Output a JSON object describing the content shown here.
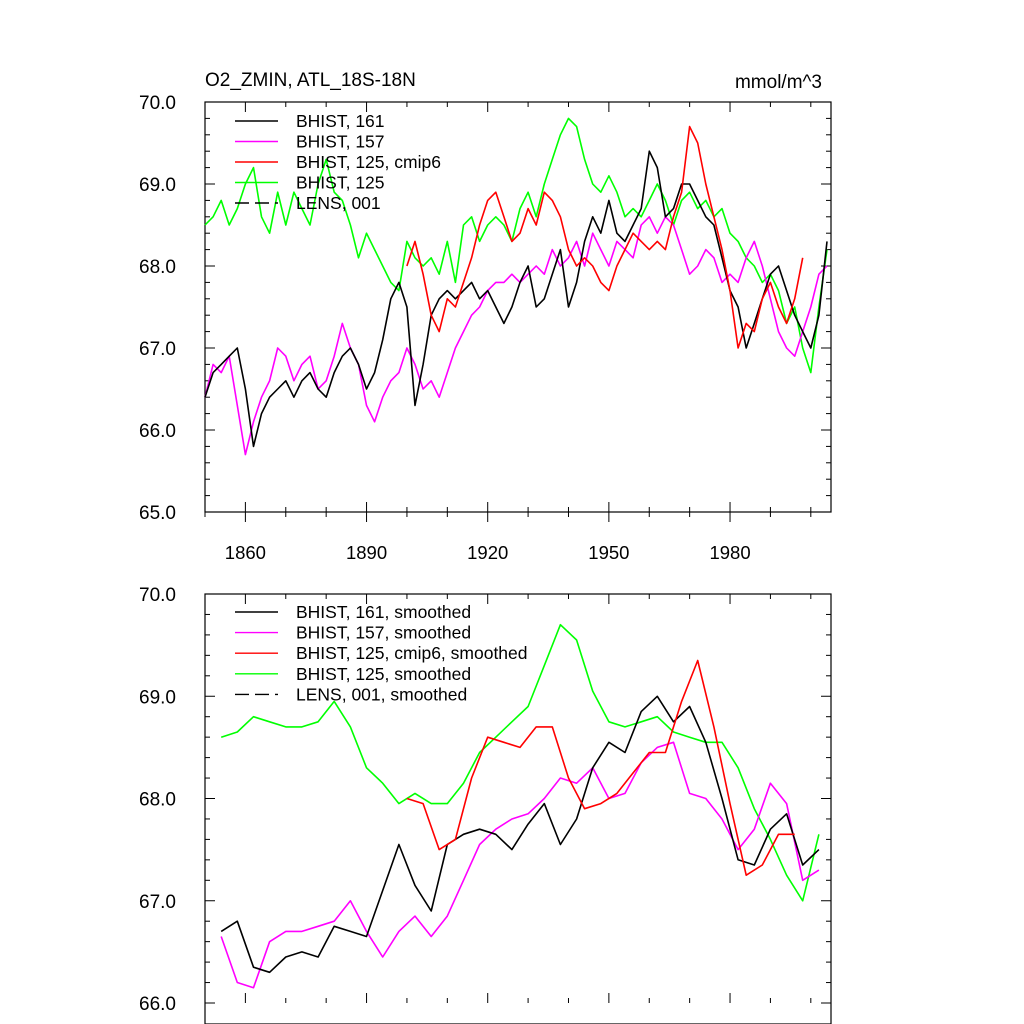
{
  "chart_data": [
    {
      "type": "line",
      "title": "O2_ZMIN, ATL_18S-18N",
      "units": "mmol/m^3",
      "xlim": [
        1850,
        2005
      ],
      "ylim": [
        65.0,
        70.0
      ],
      "yticks": [
        "70.0",
        "69.0",
        "68.0",
        "67.0",
        "66.0",
        "65.0"
      ],
      "ytick_values": [
        70,
        69,
        68,
        67,
        66,
        65
      ],
      "xticks": [
        "1860",
        "1890",
        "1920",
        "1950",
        "1980"
      ],
      "xtick_values": [
        1860,
        1890,
        1920,
        1950,
        1980
      ],
      "legend": [
        {
          "label": "BHIST, 161",
          "color": "#000000",
          "dash": false
        },
        {
          "label": "BHIST, 157",
          "color": "#ff00ff",
          "dash": false
        },
        {
          "label": "BHIST, 125, cmip6",
          "color": "#ff0000",
          "dash": false
        },
        {
          "label": "BHIST, 125",
          "color": "#00ff00",
          "dash": false
        },
        {
          "label": "LENS, 001",
          "color": "#000000",
          "dash": true
        }
      ],
      "series": [
        {
          "name": "BHIST, 125",
          "color": "#00ff00",
          "x": [
            1850,
            1852,
            1854,
            1856,
            1858,
            1860,
            1862,
            1864,
            1866,
            1868,
            1870,
            1872,
            1874,
            1876,
            1878,
            1880,
            1882,
            1884,
            1886,
            1888,
            1890,
            1892,
            1894,
            1896,
            1898,
            1900,
            1902,
            1904,
            1906,
            1908,
            1910,
            1912,
            1914,
            1916,
            1918,
            1920,
            1922,
            1924,
            1926,
            1928,
            1930,
            1932,
            1934,
            1936,
            1938,
            1940,
            1942,
            1944,
            1946,
            1948,
            1950,
            1952,
            1954,
            1956,
            1958,
            1960,
            1962,
            1964,
            1966,
            1968,
            1970,
            1972,
            1974,
            1976,
            1978,
            1980,
            1982,
            1984,
            1986,
            1988,
            1990,
            1992,
            1994,
            1996,
            1998,
            2000,
            2002,
            2004
          ],
          "values": [
            68.5,
            68.6,
            68.8,
            68.5,
            68.7,
            69.0,
            69.2,
            68.6,
            68.4,
            68.9,
            68.5,
            68.9,
            68.7,
            68.5,
            69.0,
            69.3,
            68.9,
            68.8,
            68.5,
            68.1,
            68.4,
            68.2,
            68.0,
            67.8,
            67.7,
            68.3,
            68.1,
            68.0,
            68.1,
            67.9,
            68.3,
            67.8,
            68.5,
            68.6,
            68.3,
            68.5,
            68.6,
            68.5,
            68.3,
            68.7,
            68.9,
            68.6,
            69.0,
            69.3,
            69.6,
            69.8,
            69.7,
            69.3,
            69.0,
            68.9,
            69.1,
            68.9,
            68.6,
            68.7,
            68.6,
            68.8,
            69.0,
            68.8,
            68.5,
            68.8,
            68.9,
            68.7,
            68.8,
            68.6,
            68.7,
            68.4,
            68.3,
            68.1,
            68.0,
            67.8,
            67.9,
            67.7,
            67.3,
            67.5,
            67.0,
            66.7,
            67.5,
            68.2
          ]
        },
        {
          "name": "BHIST, 157",
          "color": "#ff00ff",
          "x": [
            1850,
            1852,
            1854,
            1856,
            1858,
            1860,
            1862,
            1864,
            1866,
            1868,
            1870,
            1872,
            1874,
            1876,
            1878,
            1880,
            1882,
            1884,
            1886,
            1888,
            1890,
            1892,
            1894,
            1896,
            1898,
            1900,
            1902,
            1904,
            1906,
            1908,
            1910,
            1912,
            1914,
            1916,
            1918,
            1920,
            1922,
            1924,
            1926,
            1928,
            1930,
            1932,
            1934,
            1936,
            1938,
            1940,
            1942,
            1944,
            1946,
            1948,
            1950,
            1952,
            1954,
            1956,
            1958,
            1960,
            1962,
            1964,
            1966,
            1968,
            1970,
            1972,
            1974,
            1976,
            1978,
            1980,
            1982,
            1984,
            1986,
            1988,
            1990,
            1992,
            1994,
            1996,
            1998,
            2000,
            2002,
            2004
          ],
          "values": [
            66.4,
            66.8,
            66.7,
            66.9,
            66.3,
            65.7,
            66.1,
            66.4,
            66.6,
            67.0,
            66.9,
            66.6,
            66.8,
            66.9,
            66.5,
            66.6,
            66.9,
            67.3,
            67.0,
            66.8,
            66.3,
            66.1,
            66.4,
            66.6,
            66.7,
            67.0,
            66.8,
            66.5,
            66.6,
            66.4,
            66.7,
            67.0,
            67.2,
            67.4,
            67.5,
            67.7,
            67.8,
            67.8,
            67.9,
            67.8,
            67.9,
            68.0,
            67.9,
            68.2,
            68.0,
            68.1,
            68.3,
            68.0,
            68.4,
            68.2,
            68.0,
            68.3,
            68.2,
            68.1,
            68.5,
            68.6,
            68.4,
            68.6,
            68.5,
            68.2,
            67.9,
            68.0,
            68.2,
            68.1,
            67.8,
            67.9,
            67.8,
            68.1,
            68.3,
            68.0,
            67.6,
            67.2,
            67.0,
            66.9,
            67.2,
            67.5,
            67.9,
            68.0
          ]
        },
        {
          "name": "BHIST, 161",
          "color": "#000000",
          "x": [
            1850,
            1852,
            1854,
            1856,
            1858,
            1860,
            1862,
            1864,
            1866,
            1868,
            1870,
            1872,
            1874,
            1876,
            1878,
            1880,
            1882,
            1884,
            1886,
            1888,
            1890,
            1892,
            1894,
            1896,
            1898,
            1900,
            1902,
            1904,
            1906,
            1908,
            1910,
            1912,
            1914,
            1916,
            1918,
            1920,
            1922,
            1924,
            1926,
            1928,
            1930,
            1932,
            1934,
            1936,
            1938,
            1940,
            1942,
            1944,
            1946,
            1948,
            1950,
            1952,
            1954,
            1956,
            1958,
            1960,
            1962,
            1964,
            1966,
            1968,
            1970,
            1972,
            1974,
            1976,
            1978,
            1980,
            1982,
            1984,
            1986,
            1988,
            1990,
            1992,
            1994,
            1996,
            1998,
            2000,
            2002,
            2004
          ],
          "values": [
            66.4,
            66.7,
            66.8,
            66.9,
            67.0,
            66.5,
            65.8,
            66.2,
            66.4,
            66.5,
            66.6,
            66.4,
            66.6,
            66.7,
            66.5,
            66.4,
            66.7,
            66.9,
            67.0,
            66.8,
            66.5,
            66.7,
            67.1,
            67.6,
            67.8,
            67.5,
            66.3,
            66.8,
            67.4,
            67.6,
            67.7,
            67.6,
            67.7,
            67.8,
            67.6,
            67.7,
            67.5,
            67.3,
            67.5,
            67.8,
            68.0,
            67.5,
            67.6,
            67.9,
            68.2,
            67.5,
            67.8,
            68.3,
            68.6,
            68.4,
            68.8,
            68.4,
            68.3,
            68.5,
            68.7,
            69.4,
            69.2,
            68.6,
            68.7,
            69.0,
            69.0,
            68.8,
            68.6,
            68.5,
            68.1,
            67.7,
            67.5,
            67.0,
            67.3,
            67.6,
            67.9,
            68.0,
            67.7,
            67.4,
            67.2,
            67.0,
            67.4,
            68.3
          ]
        },
        {
          "name": "BHIST, 125, cmip6",
          "color": "#ff0000",
          "x": [
            1900,
            1902,
            1904,
            1906,
            1908,
            1910,
            1912,
            1914,
            1916,
            1918,
            1920,
            1922,
            1924,
            1926,
            1928,
            1930,
            1932,
            1934,
            1936,
            1938,
            1940,
            1942,
            1944,
            1946,
            1948,
            1950,
            1952,
            1954,
            1956,
            1958,
            1960,
            1962,
            1964,
            1966,
            1968,
            1970,
            1972,
            1974,
            1976,
            1978,
            1980,
            1982,
            1984,
            1986,
            1988,
            1990,
            1992,
            1994,
            1996,
            1998
          ],
          "values": [
            68.0,
            68.3,
            67.9,
            67.4,
            67.2,
            67.6,
            67.5,
            67.8,
            68.1,
            68.5,
            68.8,
            68.9,
            68.6,
            68.3,
            68.4,
            68.7,
            68.5,
            68.9,
            68.8,
            68.6,
            68.2,
            68.0,
            68.1,
            68.0,
            67.8,
            67.7,
            68.0,
            68.2,
            68.4,
            68.3,
            68.2,
            68.3,
            68.2,
            68.6,
            68.9,
            69.7,
            69.5,
            69.0,
            68.6,
            68.2,
            67.7,
            67.0,
            67.3,
            67.2,
            67.6,
            67.8,
            67.5,
            67.3,
            67.6,
            68.1
          ]
        }
      ]
    },
    {
      "type": "line",
      "title": "",
      "xlim": [
        1850,
        2005
      ],
      "ylim": [
        66.0,
        70.0
      ],
      "yticks": [
        "70.0",
        "69.0",
        "68.0",
        "67.0",
        "66.0"
      ],
      "ytick_values": [
        70,
        69,
        68,
        67,
        66
      ],
      "legend": [
        {
          "label": "BHIST, 161, smoothed",
          "color": "#000000",
          "dash": false
        },
        {
          "label": "BHIST, 157, smoothed",
          "color": "#ff00ff",
          "dash": false
        },
        {
          "label": "BHIST, 125, cmip6, smoothed",
          "color": "#ff0000",
          "dash": false
        },
        {
          "label": "BHIST, 125, smoothed",
          "color": "#00ff00",
          "dash": false
        },
        {
          "label": "LENS, 001, smoothed",
          "color": "#000000",
          "dash": true
        }
      ],
      "series": [
        {
          "name": "BHIST, 125, smoothed",
          "color": "#00ff00",
          "x": [
            1854,
            1858,
            1862,
            1866,
            1870,
            1874,
            1878,
            1882,
            1886,
            1890,
            1894,
            1898,
            1902,
            1906,
            1910,
            1914,
            1918,
            1922,
            1926,
            1930,
            1934,
            1938,
            1942,
            1946,
            1950,
            1954,
            1958,
            1962,
            1966,
            1970,
            1974,
            1978,
            1982,
            1986,
            1990,
            1994,
            1998,
            2002
          ],
          "values": [
            68.6,
            68.65,
            68.8,
            68.75,
            68.7,
            68.7,
            68.75,
            68.95,
            68.7,
            68.3,
            68.15,
            67.95,
            68.05,
            67.95,
            67.95,
            68.15,
            68.45,
            68.6,
            68.75,
            68.9,
            69.3,
            69.7,
            69.55,
            69.05,
            68.75,
            68.7,
            68.75,
            68.8,
            68.65,
            68.6,
            68.55,
            68.55,
            68.3,
            67.9,
            67.6,
            67.25,
            67.0,
            67.65
          ]
        },
        {
          "name": "BHIST, 157, smoothed",
          "color": "#ff00ff",
          "x": [
            1854,
            1858,
            1862,
            1866,
            1870,
            1874,
            1878,
            1882,
            1886,
            1890,
            1894,
            1898,
            1902,
            1906,
            1910,
            1914,
            1918,
            1922,
            1926,
            1930,
            1934,
            1938,
            1942,
            1946,
            1950,
            1954,
            1958,
            1962,
            1966,
            1970,
            1974,
            1978,
            1982,
            1986,
            1990,
            1994,
            1998,
            2002
          ],
          "values": [
            66.65,
            66.2,
            66.15,
            66.6,
            66.7,
            66.7,
            66.75,
            66.8,
            67.0,
            66.7,
            66.45,
            66.7,
            66.85,
            66.65,
            66.85,
            67.2,
            67.55,
            67.7,
            67.8,
            67.85,
            68.0,
            68.2,
            68.15,
            68.3,
            68.0,
            68.05,
            68.35,
            68.5,
            68.55,
            68.05,
            68.0,
            67.8,
            67.5,
            67.7,
            68.15,
            67.95,
            67.2,
            67.3
          ]
        },
        {
          "name": "BHIST, 161, smoothed",
          "color": "#000000",
          "x": [
            1854,
            1858,
            1862,
            1866,
            1870,
            1874,
            1878,
            1882,
            1886,
            1890,
            1894,
            1898,
            1902,
            1906,
            1910,
            1914,
            1918,
            1922,
            1926,
            1930,
            1934,
            1938,
            1942,
            1946,
            1950,
            1954,
            1958,
            1962,
            1966,
            1970,
            1974,
            1978,
            1982,
            1986,
            1990,
            1994,
            1998,
            2002
          ],
          "values": [
            66.7,
            66.8,
            66.35,
            66.3,
            66.45,
            66.5,
            66.45,
            66.75,
            66.7,
            66.65,
            67.1,
            67.55,
            67.15,
            66.9,
            67.55,
            67.65,
            67.7,
            67.65,
            67.5,
            67.75,
            67.95,
            67.55,
            67.8,
            68.3,
            68.55,
            68.45,
            68.85,
            69.0,
            68.75,
            68.9,
            68.55,
            68.0,
            67.4,
            67.35,
            67.7,
            67.85,
            67.35,
            67.5
          ]
        },
        {
          "name": "BHIST, 125, cmip6, smoothed",
          "color": "#ff0000",
          "x": [
            1900,
            1904,
            1908,
            1912,
            1916,
            1920,
            1924,
            1928,
            1932,
            1936,
            1940,
            1944,
            1948,
            1952,
            1956,
            1960,
            1964,
            1968,
            1972,
            1976,
            1980,
            1984,
            1988,
            1992,
            1996
          ],
          "values": [
            68.0,
            67.95,
            67.5,
            67.6,
            68.2,
            68.6,
            68.55,
            68.5,
            68.7,
            68.7,
            68.2,
            67.9,
            67.95,
            68.05,
            68.25,
            68.45,
            68.45,
            68.95,
            69.35,
            68.7,
            67.95,
            67.25,
            67.35,
            67.65,
            67.65
          ]
        }
      ]
    }
  ]
}
